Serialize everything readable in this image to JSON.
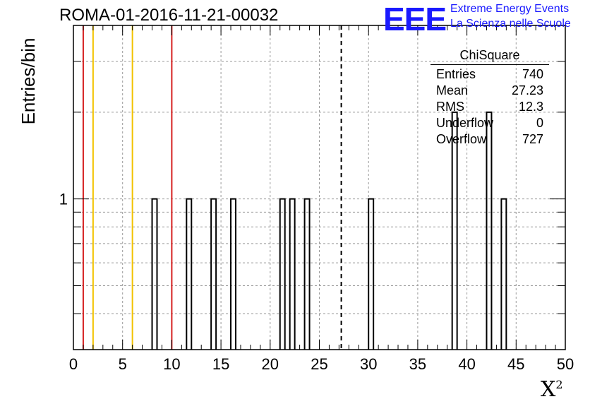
{
  "chart_data": {
    "type": "bar",
    "title": "ROMA-01-2016-11-21-00032",
    "xlabel": "X",
    "xlabel_superscript": "2",
    "ylabel": "Entries/bin",
    "xlim": [
      0,
      50
    ],
    "ylog": true,
    "ylim": [
      0.3,
      4
    ],
    "xticks": [
      "0",
      "5",
      "10",
      "15",
      "20",
      "25",
      "30",
      "35",
      "40",
      "45",
      "50"
    ],
    "yticks": [
      "1"
    ],
    "grid": true,
    "bin_width": 0.5,
    "bins": [
      {
        "x": 8.0,
        "count": 1
      },
      {
        "x": 11.5,
        "count": 1
      },
      {
        "x": 14.0,
        "count": 1
      },
      {
        "x": 16.0,
        "count": 1
      },
      {
        "x": 21.0,
        "count": 1
      },
      {
        "x": 22.0,
        "count": 1
      },
      {
        "x": 23.5,
        "count": 1
      },
      {
        "x": 30.0,
        "count": 1
      },
      {
        "x": 38.5,
        "count": 2
      },
      {
        "x": 42.0,
        "count": 2
      },
      {
        "x": 43.5,
        "count": 1
      }
    ],
    "vlines": [
      {
        "x": 1,
        "color": "#d62020"
      },
      {
        "x": 2,
        "color": "#f2c200"
      },
      {
        "x": 6,
        "color": "#f2c200"
      },
      {
        "x": 10,
        "color": "#d62020"
      },
      {
        "x": 27.23,
        "color": "#000000",
        "dashed": true
      }
    ],
    "stats": {
      "title": "ChiSquare",
      "rows": [
        {
          "label": "Entries",
          "value": "740"
        },
        {
          "label": "Mean",
          "value": "27.23"
        },
        {
          "label": "RMS",
          "value": "12.3"
        },
        {
          "label": "Underflow",
          "value": "0"
        },
        {
          "label": "Overflow",
          "value": "727"
        }
      ]
    }
  },
  "logo": {
    "mark": "EEE",
    "line1": "Extreme Energy Events",
    "line2": "La Scienza nelle Scuole",
    "color": "#1a1aff"
  }
}
